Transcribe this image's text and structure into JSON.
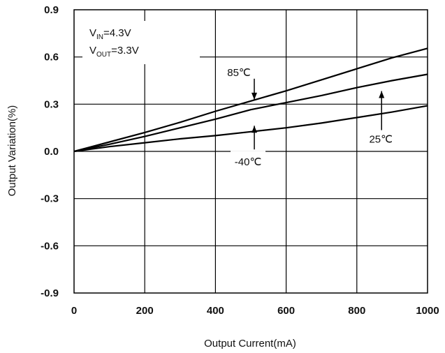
{
  "chart_data": {
    "type": "line",
    "xlabel": "Output Current(mA)",
    "ylabel": "Output Variation(%)",
    "xlim": [
      0,
      1000
    ],
    "ylim": [
      -0.9,
      0.9
    ],
    "xticks": [
      "0",
      "200",
      "400",
      "600",
      "800",
      "1000"
    ],
    "yticks": [
      "0.9",
      "0.6",
      "0.3",
      "0.0",
      "-0.3",
      "-0.6",
      "-0.9"
    ],
    "grid": true,
    "conditions": {
      "vin_main": "V",
      "vin_sub": "IN",
      "vin_val": "=4.3V",
      "vout_main": "V",
      "vout_sub": "OUT",
      "vout_val": "=3.3V"
    },
    "series": [
      {
        "name": "85℃",
        "x": [
          0,
          100,
          200,
          300,
          400,
          500,
          600,
          700,
          800,
          900,
          1000
        ],
        "y": [
          0.0,
          0.06,
          0.12,
          0.185,
          0.255,
          0.32,
          0.385,
          0.455,
          0.525,
          0.595,
          0.655
        ]
      },
      {
        "name": "25℃",
        "x": [
          0,
          100,
          200,
          300,
          400,
          500,
          600,
          700,
          800,
          900,
          1000
        ],
        "y": [
          0.0,
          0.045,
          0.095,
          0.15,
          0.205,
          0.265,
          0.31,
          0.355,
          0.405,
          0.45,
          0.49
        ]
      },
      {
        "name": "-40℃",
        "x": [
          0,
          100,
          200,
          300,
          400,
          500,
          600,
          700,
          800,
          900,
          1000
        ],
        "y": [
          0.0,
          0.03,
          0.055,
          0.08,
          0.1,
          0.125,
          0.15,
          0.18,
          0.215,
          0.25,
          0.29
        ]
      }
    ],
    "annotations": [
      {
        "text": "85℃",
        "series": "85℃",
        "at_x": 500
      },
      {
        "text": "25℃",
        "series": "25℃",
        "at_x": 870
      },
      {
        "text": "-40℃",
        "series": "-40℃",
        "at_x": 510
      }
    ]
  }
}
